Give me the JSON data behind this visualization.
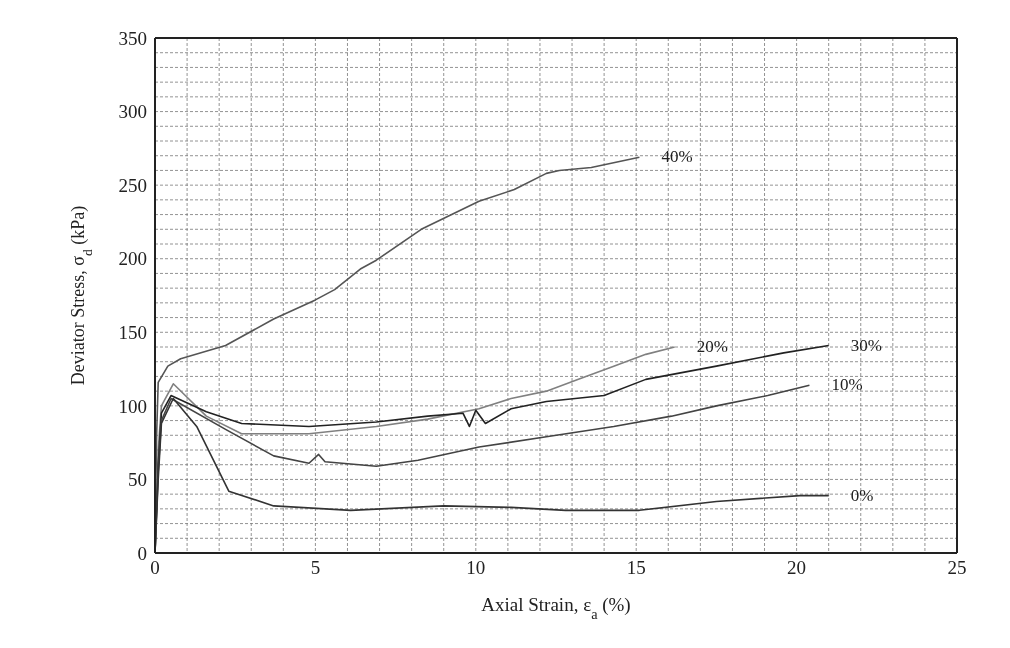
{
  "chart_data": {
    "type": "line",
    "xlabel": "Axial Strain, ε$_{a}$ (%)",
    "ylabel": "Deviator Stress, σ$_{d}$ (kPa)",
    "xlim": [
      0,
      25
    ],
    "ylim": [
      0,
      350
    ],
    "xticks": [
      0,
      {
        "value": 1,
        "label": null
      },
      {
        "value": 2,
        "label": null
      },
      {
        "value": 3,
        "label": null
      },
      {
        "value": 4,
        "label": null
      },
      5,
      {
        "value": 6,
        "label": null
      },
      {
        "value": 7,
        "label": null
      },
      {
        "value": 8,
        "label": null
      },
      {
        "value": 9,
        "label": null
      },
      10,
      {
        "value": 11,
        "label": null
      },
      {
        "value": 12,
        "label": null
      },
      {
        "value": 13,
        "label": null
      },
      {
        "value": 14,
        "label": null
      },
      15,
      {
        "value": 16,
        "label": null
      },
      {
        "value": 17,
        "label": null
      },
      {
        "value": 18,
        "label": null
      },
      {
        "value": 19,
        "label": null
      },
      20,
      {
        "value": 21,
        "label": null
      },
      {
        "value": 22,
        "label": null
      },
      {
        "value": 23,
        "label": null
      },
      {
        "value": 24,
        "label": null
      },
      25
    ],
    "yticks": [
      0,
      {
        "value": 10,
        "label": null
      },
      {
        "value": 20,
        "label": null
      },
      {
        "value": 30,
        "label": null
      },
      {
        "value": 40,
        "label": null
      },
      50,
      {
        "value": 60,
        "label": null
      },
      {
        "value": 70,
        "label": null
      },
      {
        "value": 80,
        "label": null
      },
      {
        "value": 90,
        "label": null
      },
      100,
      {
        "value": 110,
        "label": null
      },
      {
        "value": 120,
        "label": null
      },
      {
        "value": 130,
        "label": null
      },
      {
        "value": 140,
        "label": null
      },
      150,
      {
        "value": 160,
        "label": null
      },
      {
        "value": 170,
        "label": null
      },
      {
        "value": 180,
        "label": null
      },
      {
        "value": 190,
        "label": null
      },
      200,
      {
        "value": 210,
        "label": null
      },
      {
        "value": 220,
        "label": null
      },
      {
        "value": 230,
        "label": null
      },
      {
        "value": 240,
        "label": null
      },
      250,
      {
        "value": 260,
        "label": null
      },
      {
        "value": 270,
        "label": null
      },
      {
        "value": 280,
        "label": null
      },
      {
        "value": 290,
        "label": null
      },
      300,
      {
        "value": 310,
        "label": null
      },
      {
        "value": 320,
        "label": null
      },
      {
        "value": 330,
        "label": null
      },
      {
        "value": 340,
        "label": null
      },
      350
    ],
    "grid": true,
    "legend": false,
    "marker": "none",
    "line_style": "solid",
    "series": [
      {
        "name": "40%",
        "color": "#555555",
        "x": [
          0,
          0.05,
          0.1,
          0.4,
          0.8,
          2.2,
          3.7,
          5.0,
          5.6,
          6.4,
          6.9,
          8.3,
          10.1,
          11.2,
          12.2,
          12.6,
          13.6,
          15.1
        ],
        "values": [
          0,
          80,
          116,
          127,
          132,
          141,
          159,
          172,
          179,
          193,
          199,
          220,
          239,
          247,
          258,
          260,
          262,
          269
        ]
      },
      {
        "name": "20%",
        "color": "#808080",
        "x": [
          0,
          0.1,
          0.2,
          0.57,
          1.6,
          2.7,
          4.8,
          6.9,
          8.5,
          10.1,
          11.1,
          12.2,
          13.2,
          14.3,
          15.3,
          16.2
        ],
        "values": [
          0,
          70,
          100,
          115,
          93,
          81,
          81,
          86,
          91,
          98,
          105,
          110,
          118,
          127,
          135,
          140
        ]
      },
      {
        "name": "30%",
        "color": "#222222",
        "x": [
          0,
          0.1,
          0.2,
          0.5,
          1.6,
          2.7,
          4.8,
          6.9,
          8.5,
          9.6,
          9.8,
          10.0,
          10.3,
          11.1,
          12.2,
          14.0,
          15.3,
          17.5,
          19.6,
          21.0
        ],
        "values": [
          0,
          60,
          95,
          107,
          96,
          88,
          86,
          89,
          93,
          95,
          86,
          97,
          88,
          98,
          103,
          107,
          118,
          127,
          136,
          141
        ]
      },
      {
        "name": "10%",
        "color": "#444444",
        "x": [
          0,
          0.1,
          0.2,
          0.5,
          2.2,
          3.7,
          4.8,
          5.1,
          5.3,
          6.9,
          8.2,
          10.1,
          12.2,
          14.3,
          16.1,
          17.5,
          19.1,
          20.4
        ],
        "values": [
          0,
          55,
          90,
          105,
          84,
          66,
          61,
          67,
          62,
          59,
          63,
          72,
          79,
          86,
          93,
          100,
          107,
          114
        ]
      },
      {
        "name": "0%",
        "color": "#333333",
        "x": [
          0,
          0.1,
          0.2,
          0.57,
          1.3,
          2.3,
          3.7,
          6.1,
          9.0,
          11.1,
          12.8,
          15.1,
          17.5,
          20.1,
          21.0
        ],
        "values": [
          0,
          50,
          88,
          105,
          86,
          42,
          32,
          29,
          32,
          31,
          29,
          29,
          35,
          39,
          39
        ]
      }
    ]
  }
}
